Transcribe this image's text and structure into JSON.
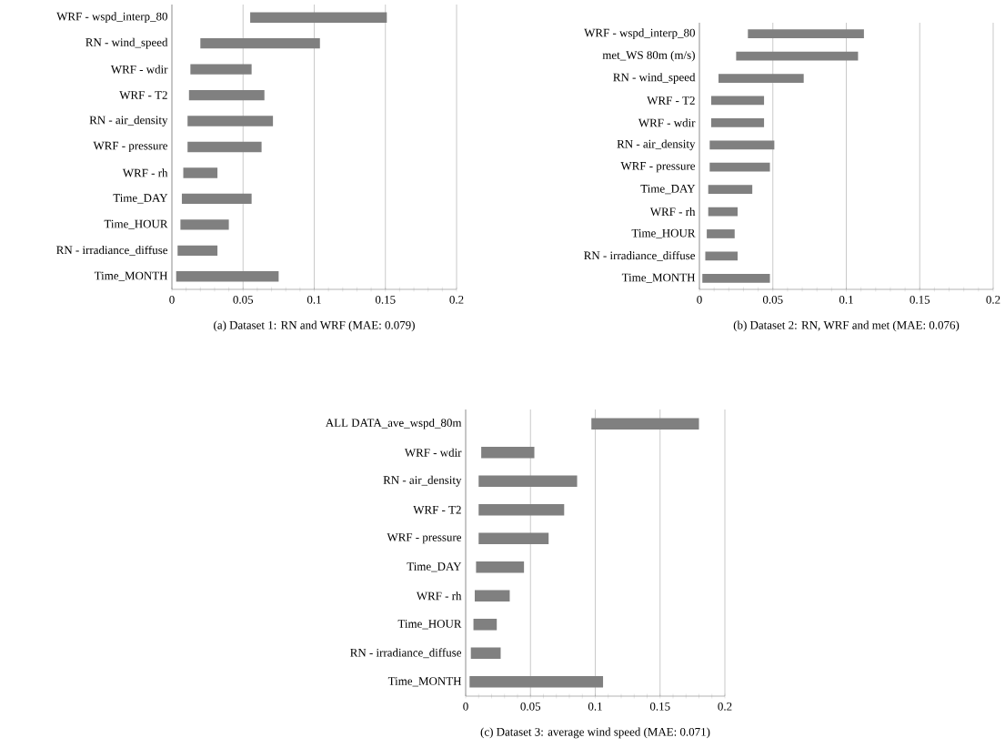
{
  "chart_data": [
    {
      "type": "bar",
      "orientation": "horizontal",
      "title": "(a) Dataset 1: RN and WRF (MAE: 0.079)",
      "categories": [
        "WRF - wspd_interp_80",
        "RN - wind_speed",
        "WRF - wdir",
        "WRF - T2",
        "RN - air_density",
        "WRF - pressure",
        "WRF - rh",
        "Time_DAY",
        "Time_HOUR",
        "RN - irradiance_diffuse",
        "Time_MONTH"
      ],
      "base": [
        0.055,
        0.02,
        0.013,
        0.012,
        0.011,
        0.011,
        0.008,
        0.007,
        0.006,
        0.004,
        0.003
      ],
      "values": [
        0.096,
        0.084,
        0.043,
        0.053,
        0.06,
        0.052,
        0.024,
        0.049,
        0.034,
        0.028,
        0.072
      ],
      "color": "#808080",
      "xlim": [
        0,
        0.2
      ],
      "xticks": [
        0,
        0.05,
        0.1,
        0.15,
        0.2
      ],
      "grid": "x"
    },
    {
      "type": "bar",
      "orientation": "horizontal",
      "title": "(b) Dataset 2: RN, WRF and met (MAE: 0.076)",
      "categories": [
        "WRF - wspd_interp_80",
        "met_WS 80m (m/s)",
        "RN - wind_speed",
        "WRF - T2",
        "WRF - wdir",
        "RN - air_density",
        "WRF - pressure",
        "Time_DAY",
        "WRF - rh",
        "Time_HOUR",
        "RN - irradiance_diffuse",
        "Time_MONTH"
      ],
      "base": [
        0.033,
        0.025,
        0.013,
        0.008,
        0.008,
        0.007,
        0.007,
        0.006,
        0.006,
        0.005,
        0.004,
        0.002
      ],
      "values": [
        0.079,
        0.083,
        0.058,
        0.036,
        0.036,
        0.044,
        0.041,
        0.03,
        0.02,
        0.019,
        0.022,
        0.046
      ],
      "color": "#808080",
      "xlim": [
        0,
        0.2
      ],
      "xticks": [
        0,
        0.05,
        0.1,
        0.15,
        0.2
      ],
      "grid": "x"
    },
    {
      "type": "bar",
      "orientation": "horizontal",
      "title": "(c) Dataset 3: average wind speed (MAE: 0.071)",
      "categories": [
        "ALL DATA_ave_wspd_80m",
        "WRF - wdir",
        "RN - air_density",
        "WRF - T2",
        "WRF - pressure",
        "Time_DAY",
        "WRF - rh",
        "Time_HOUR",
        "RN - irradiance_diffuse",
        "Time_MONTH"
      ],
      "base": [
        0.097,
        0.012,
        0.01,
        0.01,
        0.01,
        0.008,
        0.007,
        0.006,
        0.004,
        0.003
      ],
      "values": [
        0.083,
        0.041,
        0.076,
        0.066,
        0.054,
        0.037,
        0.027,
        0.018,
        0.023,
        0.103
      ],
      "color": "#808080",
      "xlim": [
        0,
        0.2
      ],
      "xticks": [
        0,
        0.05,
        0.1,
        0.15,
        0.2
      ],
      "grid": "x"
    }
  ]
}
